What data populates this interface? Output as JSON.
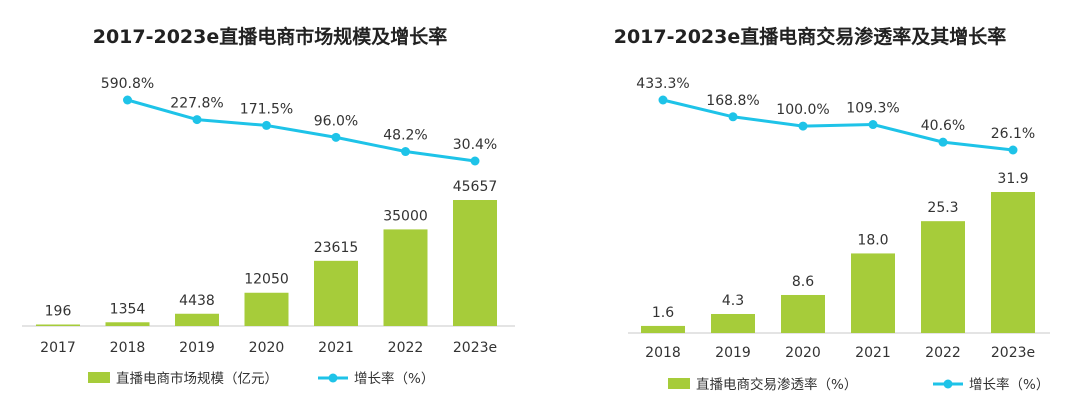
{
  "colors": {
    "bar": "#a6cc3a",
    "line": "#1ec3e8",
    "axis": "#c8c8c8",
    "text": "#333333"
  },
  "chart_data": [
    {
      "type": "bar",
      "title": "2017-2023e直播电商市场规模及增长率",
      "categories": [
        "2017",
        "2018",
        "2019",
        "2020",
        "2021",
        "2022",
        "2023e"
      ],
      "series": [
        {
          "name": "直播电商市场规模（亿元）",
          "kind": "bar",
          "values": [
            196,
            1354,
            4438,
            12050,
            23615,
            35000,
            45657
          ],
          "labels": [
            "196",
            "1354",
            "4438",
            "12050",
            "23615",
            "35000",
            "45657"
          ]
        },
        {
          "name": "增长率（%）",
          "kind": "line",
          "values": [
            null,
            590.8,
            227.8,
            171.5,
            96.0,
            48.2,
            30.4
          ],
          "labels": [
            "",
            "590.8%",
            "227.8%",
            "171.5%",
            "96.0%",
            "48.2%",
            "30.4%"
          ]
        }
      ],
      "legend_position": "bottom"
    },
    {
      "type": "bar",
      "title": "2017-2023e直播电商交易渗透率及其增长率",
      "categories": [
        "2018",
        "2019",
        "2020",
        "2021",
        "2022",
        "2023e"
      ],
      "series": [
        {
          "name": "直播电商交易渗透率（%）",
          "kind": "bar",
          "values": [
            1.6,
            4.3,
            8.6,
            18.0,
            25.3,
            31.9
          ],
          "labels": [
            "1.6",
            "4.3",
            "8.6",
            "18.0",
            "25.3",
            "31.9"
          ]
        },
        {
          "name": "增长率（%）",
          "kind": "line",
          "values": [
            433.3,
            168.8,
            100.0,
            109.3,
            40.6,
            26.1
          ],
          "labels": [
            "433.3%",
            "168.8%",
            "100.0%",
            "109.3%",
            "40.6%",
            "26.1%"
          ]
        }
      ],
      "legend_position": "bottom"
    }
  ]
}
